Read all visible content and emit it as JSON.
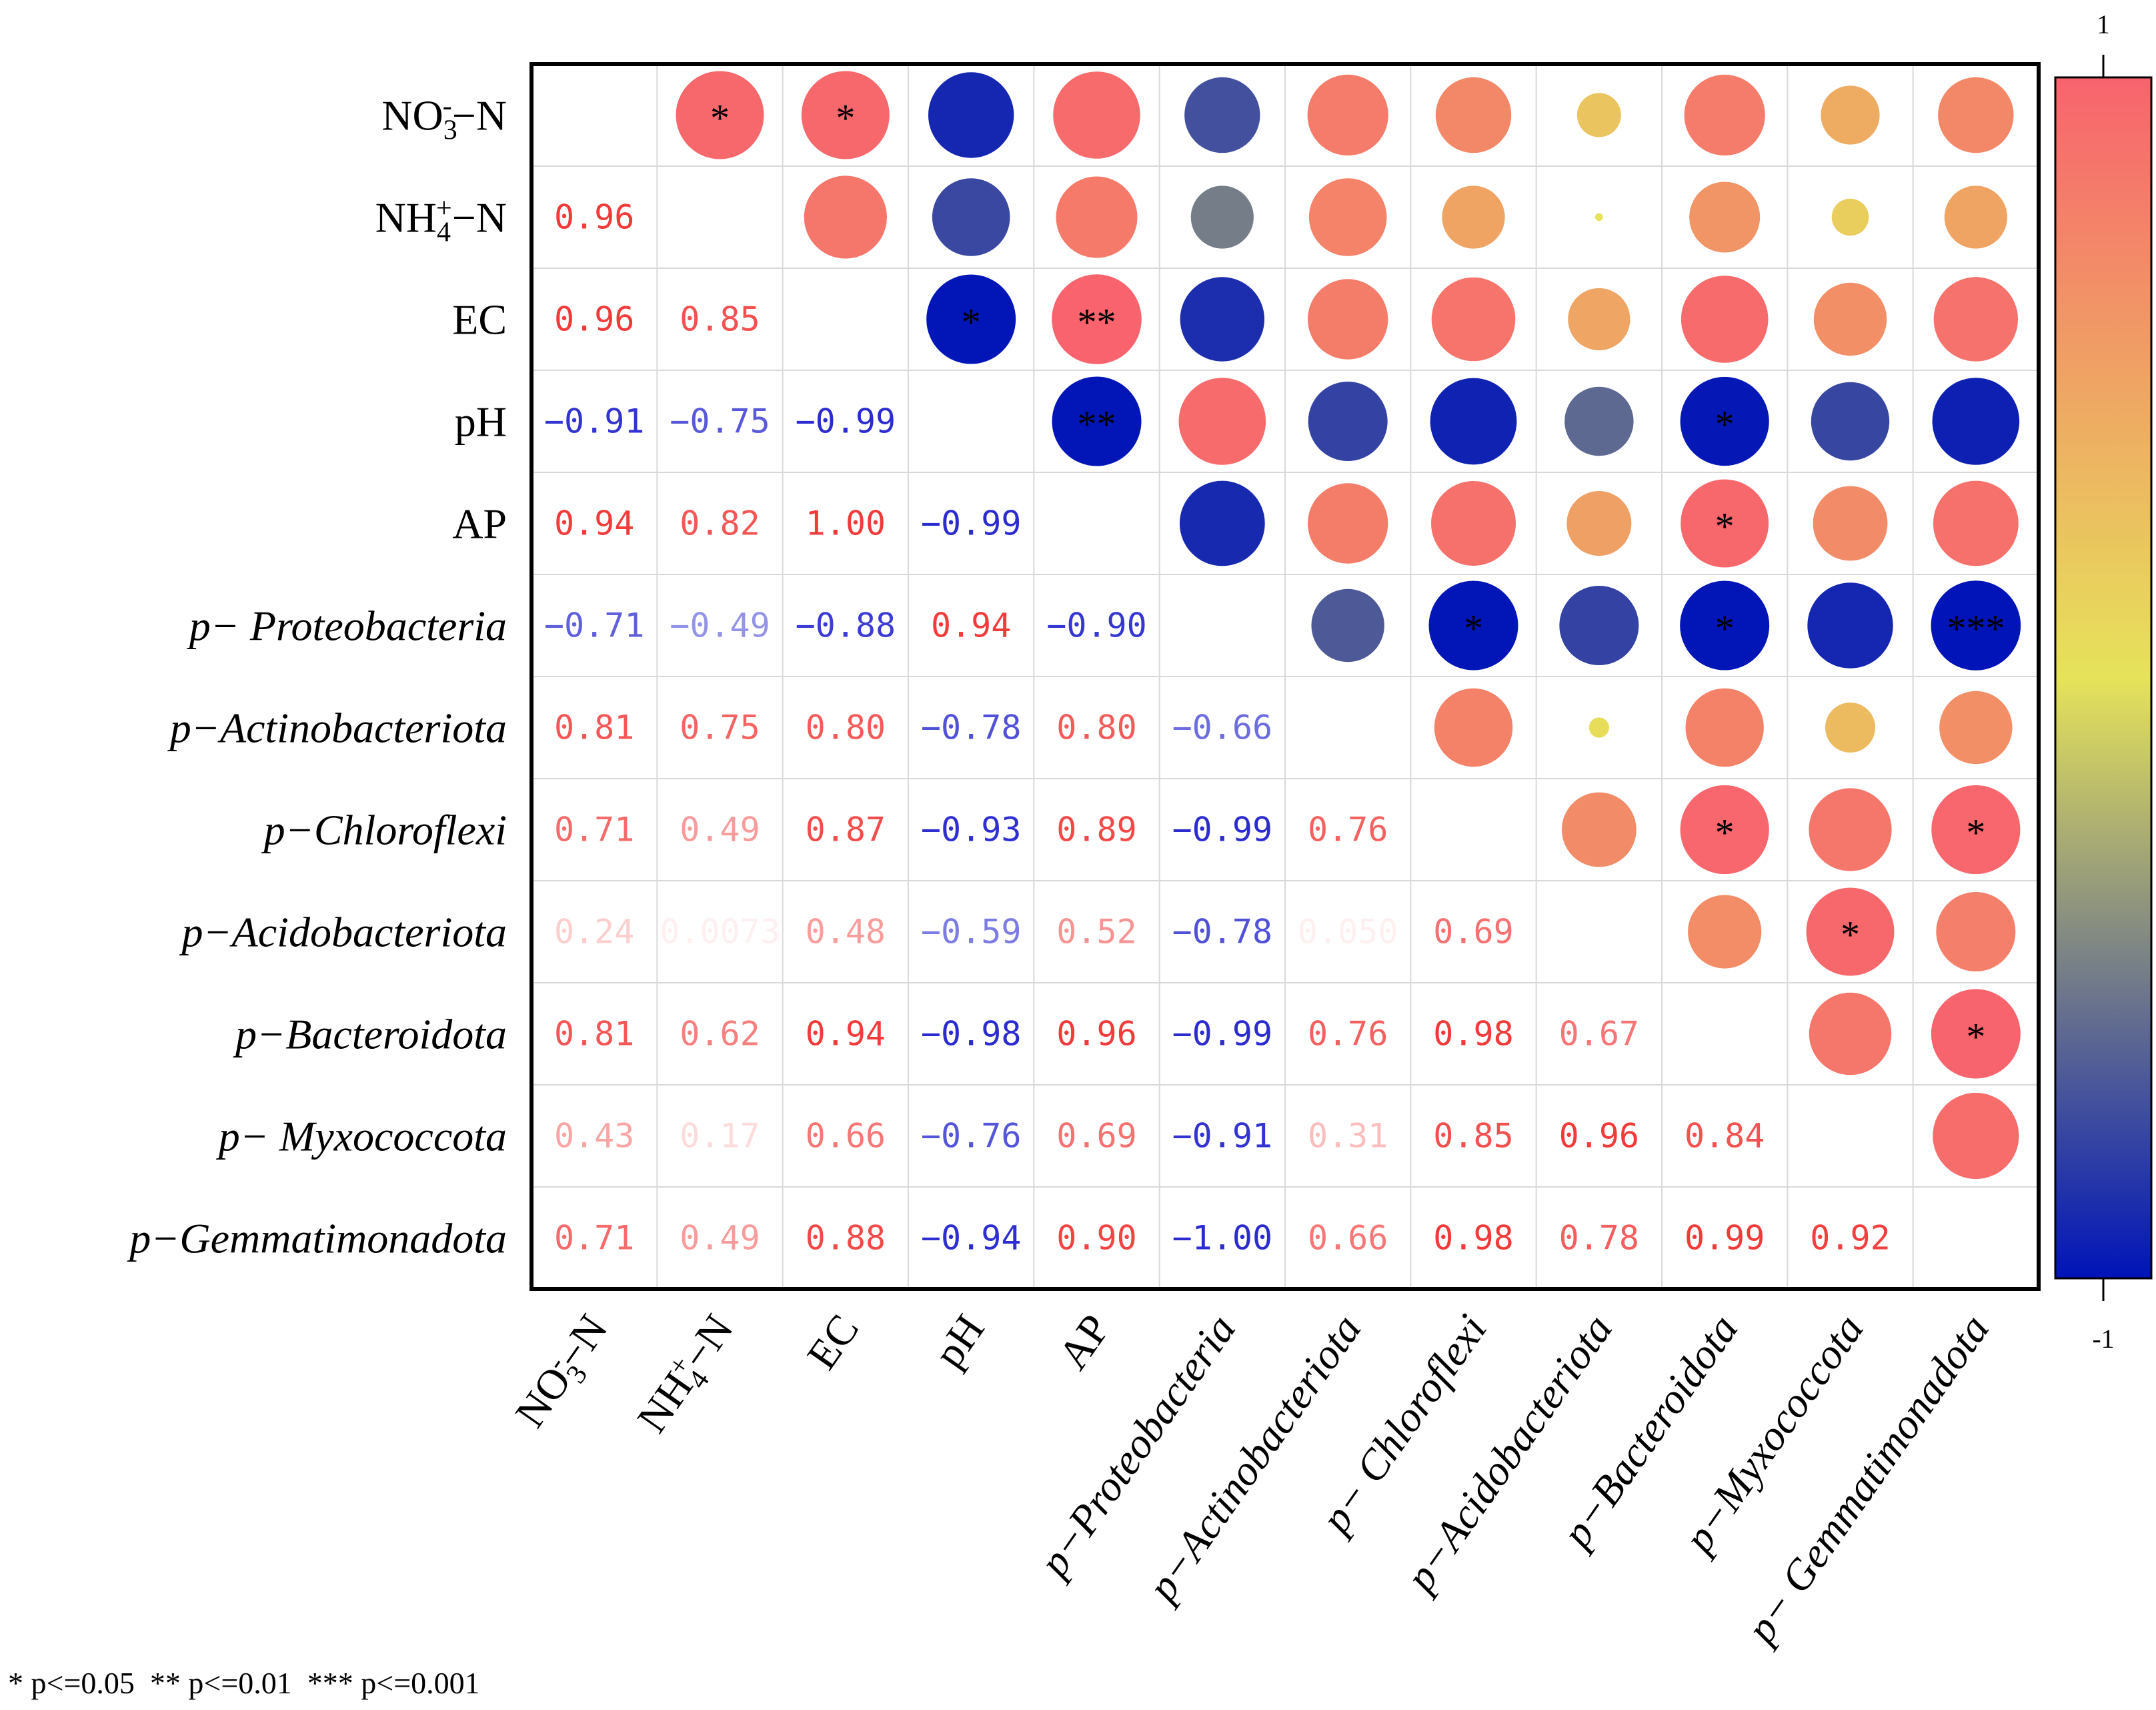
{
  "chart_data": {
    "type": "heatmap",
    "title": "",
    "variables": [
      {
        "id": "NO3",
        "base": "NO",
        "sub": "3",
        "sup": "-",
        "tail": "−N",
        "italic": false
      },
      {
        "id": "NH4",
        "base": "NH",
        "sub": "4",
        "sup": "+",
        "tail": "−N",
        "italic": false
      },
      {
        "id": "EC",
        "base": "EC",
        "sub": "",
        "sup": "",
        "tail": "",
        "italic": false
      },
      {
        "id": "pH",
        "base": "pH",
        "sub": "",
        "sup": "",
        "tail": "",
        "italic": false
      },
      {
        "id": "AP",
        "base": "AP",
        "sub": "",
        "sup": "",
        "tail": "",
        "italic": false
      },
      {
        "id": "p-Proteobacteria",
        "base": "p− Proteobacteria",
        "sub": "",
        "sup": "",
        "tail": "",
        "italic": true
      },
      {
        "id": "p-Actinobacteriota",
        "base": "p−Actinobacteriota",
        "sub": "",
        "sup": "",
        "tail": "",
        "italic": true
      },
      {
        "id": "p-Chloroflexi",
        "base": "p−Chloroflexi",
        "sub": "",
        "sup": "",
        "tail": "",
        "italic": true
      },
      {
        "id": "p-Acidobacteriota",
        "base": "p−Acidobacteriota",
        "sub": "",
        "sup": "",
        "tail": "",
        "italic": true
      },
      {
        "id": "p-Bacteroidota",
        "base": "p−Bacteroidota",
        "sub": "",
        "sup": "",
        "tail": "",
        "italic": true
      },
      {
        "id": "p-Myxococcota",
        "base": "p− Myxococcota",
        "sub": "",
        "sup": "",
        "tail": "",
        "italic": true
      },
      {
        "id": "p-Gemmatimonadota",
        "base": "p−Gemmatimonadota",
        "sub": "",
        "sup": "",
        "tail": "",
        "italic": true
      }
    ],
    "column_labels": [
      {
        "base": "NO",
        "sub": "3",
        "sup": "-",
        "tail": "−N",
        "italic": false
      },
      {
        "base": "NH",
        "sub": "4",
        "sup": "+",
        "tail": "−N",
        "italic": false
      },
      {
        "base": "EC",
        "sub": "",
        "sup": "",
        "tail": "",
        "italic": false
      },
      {
        "base": "pH",
        "sub": "",
        "sup": "",
        "tail": "",
        "italic": false
      },
      {
        "base": "AP",
        "sub": "",
        "sup": "",
        "tail": "",
        "italic": false
      },
      {
        "base": "p−Proteobacteria",
        "sub": "",
        "sup": "",
        "tail": "",
        "italic": true
      },
      {
        "base": "p−Actinobacteriota",
        "sub": "",
        "sup": "",
        "tail": "",
        "italic": true
      },
      {
        "base": "p− Chloroflexi",
        "sub": "",
        "sup": "",
        "tail": "",
        "italic": true
      },
      {
        "base": "p−Acidobacteriota",
        "sub": "",
        "sup": "",
        "tail": "",
        "italic": true
      },
      {
        "base": "p−Bacteroidota",
        "sub": "",
        "sup": "",
        "tail": "",
        "italic": true
      },
      {
        "base": "p−Myxococcota",
        "sub": "",
        "sup": "",
        "tail": "",
        "italic": true
      },
      {
        "base": "p− Gemmatimonadota",
        "sub": "",
        "sup": "",
        "tail": "",
        "italic": true
      }
    ],
    "lower_triangle_text": [
      [
        null,
        null,
        null,
        null,
        null,
        null,
        null,
        null,
        null,
        null,
        null,
        null
      ],
      [
        "0.96",
        null,
        null,
        null,
        null,
        null,
        null,
        null,
        null,
        null,
        null,
        null
      ],
      [
        "0.96",
        "0.85",
        null,
        null,
        null,
        null,
        null,
        null,
        null,
        null,
        null,
        null
      ],
      [
        "−0.91",
        "−0.75",
        "−0.99",
        null,
        null,
        null,
        null,
        null,
        null,
        null,
        null,
        null
      ],
      [
        "0.94",
        "0.82",
        "1.00",
        "−0.99",
        null,
        null,
        null,
        null,
        null,
        null,
        null,
        null
      ],
      [
        "−0.71",
        "−0.49",
        "−0.88",
        "0.94",
        "−0.90",
        null,
        null,
        null,
        null,
        null,
        null,
        null
      ],
      [
        "0.81",
        "0.75",
        "0.80",
        "−0.78",
        "0.80",
        "−0.66",
        null,
        null,
        null,
        null,
        null,
        null
      ],
      [
        "0.71",
        "0.49",
        "0.87",
        "−0.93",
        "0.89",
        "−0.99",
        "0.76",
        null,
        null,
        null,
        null,
        null
      ],
      [
        "0.24",
        "0.0073",
        "0.48",
        "−0.59",
        "0.52",
        "−0.78",
        "0.050",
        "0.69",
        null,
        null,
        null,
        null
      ],
      [
        "0.81",
        "0.62",
        "0.94",
        "−0.98",
        "0.96",
        "−0.99",
        "0.76",
        "0.98",
        "0.67",
        null,
        null,
        null
      ],
      [
        "0.43",
        "0.17",
        "0.66",
        "−0.76",
        "0.69",
        "−0.91",
        "0.31",
        "0.85",
        "0.96",
        "0.84",
        null,
        null
      ],
      [
        "0.71",
        "0.49",
        "0.88",
        "−0.94",
        "0.90",
        "−1.00",
        "0.66",
        "0.98",
        "0.78",
        "0.99",
        "0.92",
        null
      ]
    ],
    "upper_triangle_circles": [
      {
        "row": 0,
        "col": 1,
        "r": 0.96,
        "sig": "*"
      },
      {
        "row": 0,
        "col": 2,
        "r": 0.96,
        "sig": "*"
      },
      {
        "row": 0,
        "col": 3,
        "r": -0.91,
        "sig": ""
      },
      {
        "row": 0,
        "col": 4,
        "r": 0.94,
        "sig": ""
      },
      {
        "row": 0,
        "col": 5,
        "r": -0.71,
        "sig": ""
      },
      {
        "row": 0,
        "col": 6,
        "r": 0.81,
        "sig": ""
      },
      {
        "row": 0,
        "col": 7,
        "r": 0.71,
        "sig": ""
      },
      {
        "row": 0,
        "col": 8,
        "r": 0.24,
        "sig": ""
      },
      {
        "row": 0,
        "col": 9,
        "r": 0.81,
        "sig": ""
      },
      {
        "row": 0,
        "col": 10,
        "r": 0.43,
        "sig": ""
      },
      {
        "row": 0,
        "col": 11,
        "r": 0.71,
        "sig": ""
      },
      {
        "row": 1,
        "col": 2,
        "r": 0.85,
        "sig": ""
      },
      {
        "row": 1,
        "col": 3,
        "r": -0.75,
        "sig": ""
      },
      {
        "row": 1,
        "col": 4,
        "r": 0.82,
        "sig": ""
      },
      {
        "row": 1,
        "col": 5,
        "r": -0.49,
        "sig": ""
      },
      {
        "row": 1,
        "col": 6,
        "r": 0.75,
        "sig": ""
      },
      {
        "row": 1,
        "col": 7,
        "r": 0.49,
        "sig": ""
      },
      {
        "row": 1,
        "col": 8,
        "r": 0.0073,
        "sig": ""
      },
      {
        "row": 1,
        "col": 9,
        "r": 0.62,
        "sig": ""
      },
      {
        "row": 1,
        "col": 10,
        "r": 0.17,
        "sig": ""
      },
      {
        "row": 1,
        "col": 11,
        "r": 0.49,
        "sig": ""
      },
      {
        "row": 2,
        "col": 3,
        "r": -0.99,
        "sig": "*"
      },
      {
        "row": 2,
        "col": 4,
        "r": 1.0,
        "sig": "**"
      },
      {
        "row": 2,
        "col": 5,
        "r": -0.88,
        "sig": ""
      },
      {
        "row": 2,
        "col": 6,
        "r": 0.8,
        "sig": ""
      },
      {
        "row": 2,
        "col": 7,
        "r": 0.87,
        "sig": ""
      },
      {
        "row": 2,
        "col": 8,
        "r": 0.48,
        "sig": ""
      },
      {
        "row": 2,
        "col": 9,
        "r": 0.94,
        "sig": ""
      },
      {
        "row": 2,
        "col": 10,
        "r": 0.66,
        "sig": ""
      },
      {
        "row": 2,
        "col": 11,
        "r": 0.88,
        "sig": ""
      },
      {
        "row": 3,
        "col": 4,
        "r": -0.99,
        "sig": "**"
      },
      {
        "row": 3,
        "col": 5,
        "r": 0.94,
        "sig": ""
      },
      {
        "row": 3,
        "col": 6,
        "r": -0.78,
        "sig": ""
      },
      {
        "row": 3,
        "col": 7,
        "r": -0.93,
        "sig": ""
      },
      {
        "row": 3,
        "col": 8,
        "r": -0.59,
        "sig": ""
      },
      {
        "row": 3,
        "col": 9,
        "r": -0.98,
        "sig": "*"
      },
      {
        "row": 3,
        "col": 10,
        "r": -0.76,
        "sig": ""
      },
      {
        "row": 3,
        "col": 11,
        "r": -0.94,
        "sig": ""
      },
      {
        "row": 4,
        "col": 5,
        "r": -0.9,
        "sig": ""
      },
      {
        "row": 4,
        "col": 6,
        "r": 0.8,
        "sig": ""
      },
      {
        "row": 4,
        "col": 7,
        "r": 0.89,
        "sig": ""
      },
      {
        "row": 4,
        "col": 8,
        "r": 0.52,
        "sig": ""
      },
      {
        "row": 4,
        "col": 9,
        "r": 0.96,
        "sig": "*"
      },
      {
        "row": 4,
        "col": 10,
        "r": 0.69,
        "sig": ""
      },
      {
        "row": 4,
        "col": 11,
        "r": 0.9,
        "sig": ""
      },
      {
        "row": 5,
        "col": 6,
        "r": -0.66,
        "sig": ""
      },
      {
        "row": 5,
        "col": 7,
        "r": -0.99,
        "sig": "*"
      },
      {
        "row": 5,
        "col": 8,
        "r": -0.78,
        "sig": ""
      },
      {
        "row": 5,
        "col": 9,
        "r": -0.99,
        "sig": "*"
      },
      {
        "row": 5,
        "col": 10,
        "r": -0.91,
        "sig": ""
      },
      {
        "row": 5,
        "col": 11,
        "r": -1.0,
        "sig": "***"
      },
      {
        "row": 6,
        "col": 7,
        "r": 0.76,
        "sig": ""
      },
      {
        "row": 6,
        "col": 8,
        "r": 0.05,
        "sig": ""
      },
      {
        "row": 6,
        "col": 9,
        "r": 0.76,
        "sig": ""
      },
      {
        "row": 6,
        "col": 10,
        "r": 0.31,
        "sig": ""
      },
      {
        "row": 6,
        "col": 11,
        "r": 0.66,
        "sig": ""
      },
      {
        "row": 7,
        "col": 8,
        "r": 0.69,
        "sig": ""
      },
      {
        "row": 7,
        "col": 9,
        "r": 0.98,
        "sig": "*"
      },
      {
        "row": 7,
        "col": 10,
        "r": 0.85,
        "sig": ""
      },
      {
        "row": 7,
        "col": 11,
        "r": 0.98,
        "sig": "*"
      },
      {
        "row": 8,
        "col": 9,
        "r": 0.67,
        "sig": ""
      },
      {
        "row": 8,
        "col": 10,
        "r": 0.96,
        "sig": "*"
      },
      {
        "row": 8,
        "col": 11,
        "r": 0.78,
        "sig": ""
      },
      {
        "row": 9,
        "col": 10,
        "r": 0.84,
        "sig": ""
      },
      {
        "row": 9,
        "col": 11,
        "r": 0.99,
        "sig": "*"
      },
      {
        "row": 10,
        "col": 11,
        "r": 0.92,
        "sig": ""
      }
    ],
    "colorbar": {
      "range": [
        -1,
        1
      ],
      "tick_max_label": "1",
      "tick_min_label": "-1",
      "stops": [
        "#0014b8",
        "#e6e35a",
        "#f8636e"
      ]
    },
    "significance_legend": "* p<=0.05  ** p<=0.01  *** p<=0.001"
  }
}
